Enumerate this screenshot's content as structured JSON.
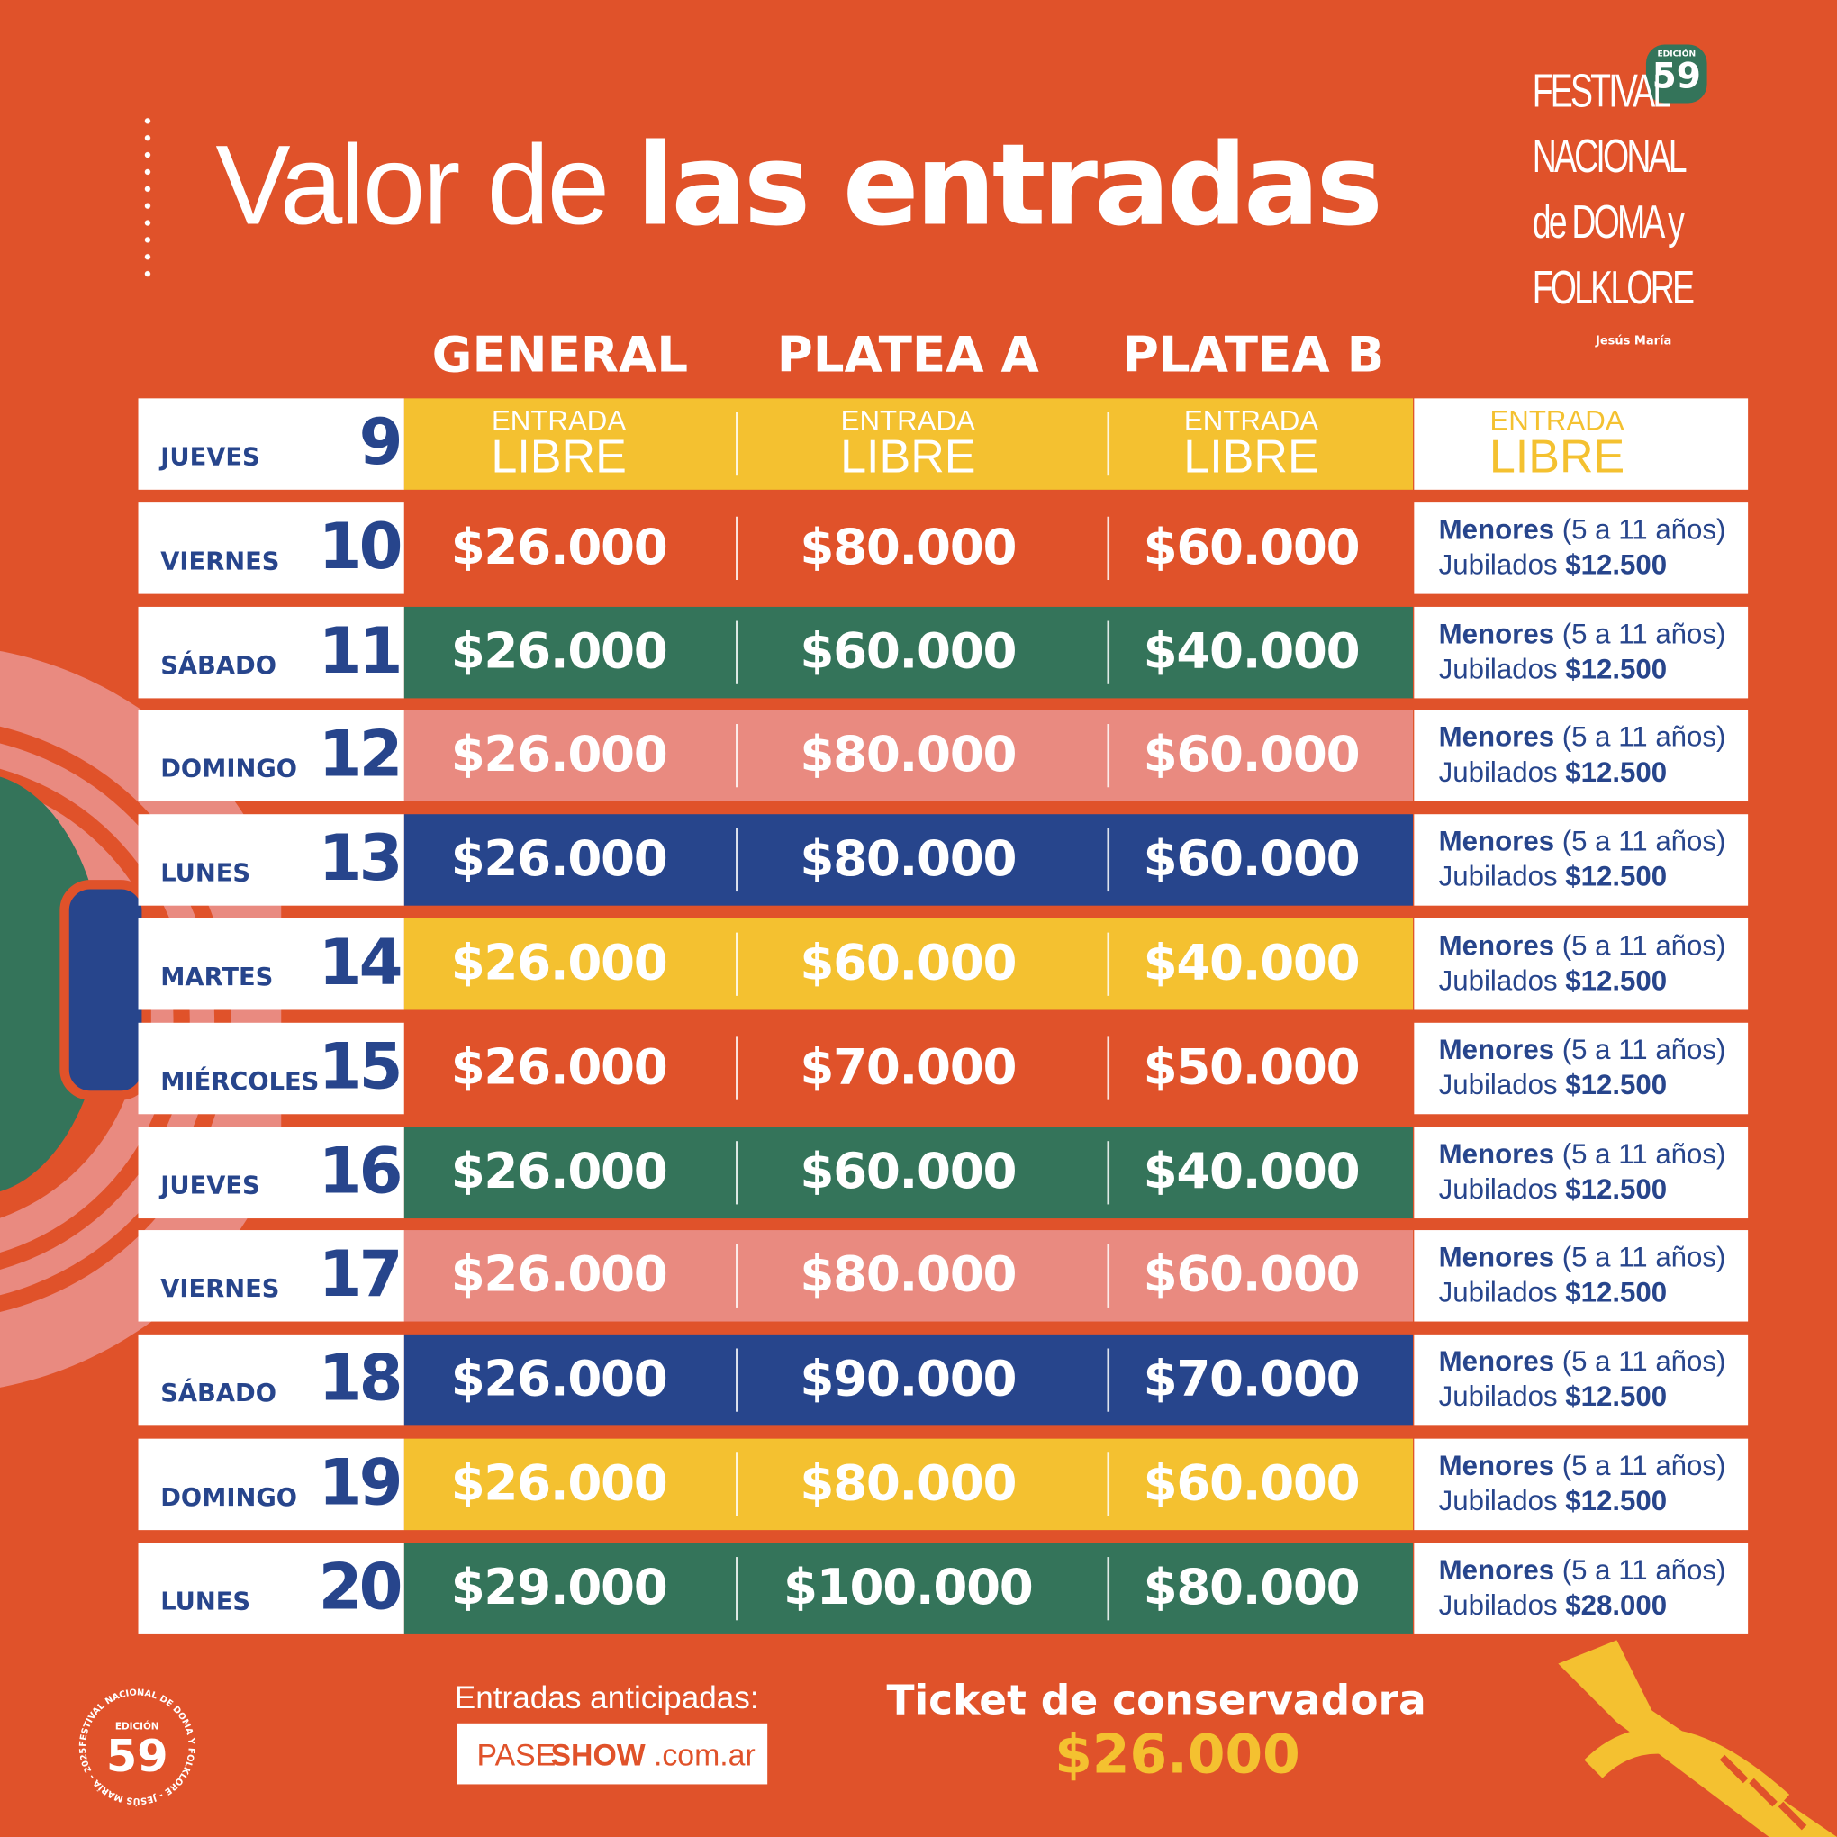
{
  "title": {
    "light": "Valor de ",
    "bold": "las entradas"
  },
  "logo": {
    "lines": [
      "FESTIVAL",
      "NACIONAL",
      "de DOMA y",
      "FOLKLORE"
    ],
    "place": "Jesús María",
    "edition_label": "EDICIÓN",
    "edition": "59"
  },
  "columns": [
    "GENERAL",
    "PLATEA A",
    "PLATEA B"
  ],
  "colors": {
    "background": "#E0522A",
    "yellow": "#F4C130",
    "green": "#34745A",
    "pink": "#E98A80",
    "blue": "#27458C",
    "orange": "#E0522A"
  },
  "free_label": {
    "line1": "ENTRADA",
    "line2": "LIBRE"
  },
  "rows": [
    {
      "day": "JUEVES",
      "num": "9",
      "color": "yellow",
      "free": true
    },
    {
      "day": "VIERNES",
      "num": "10",
      "color": "orange",
      "general": "$26.000",
      "platea_a": "$80.000",
      "platea_b": "$60.000",
      "menores": "Menores",
      "range": "(5 a 11 años)",
      "jubilados": "Jubilados",
      "jub_price": "$12.500"
    },
    {
      "day": "SÁBADO",
      "num": "11",
      "color": "green",
      "general": "$26.000",
      "platea_a": "$60.000",
      "platea_b": "$40.000",
      "menores": "Menores",
      "range": "(5 a 11 años)",
      "jubilados": "Jubilados",
      "jub_price": "$12.500"
    },
    {
      "day": "DOMINGO",
      "num": "12",
      "color": "pink",
      "general": "$26.000",
      "platea_a": "$80.000",
      "platea_b": "$60.000",
      "menores": "Menores",
      "range": "(5 a 11 años)",
      "jubilados": "Jubilados",
      "jub_price": "$12.500"
    },
    {
      "day": "LUNES",
      "num": "13",
      "color": "blue",
      "general": "$26.000",
      "platea_a": "$80.000",
      "platea_b": "$60.000",
      "menores": "Menores",
      "range": "(5 a 11 años)",
      "jubilados": "Jubilados",
      "jub_price": "$12.500"
    },
    {
      "day": "MARTES",
      "num": "14",
      "color": "yellow",
      "general": "$26.000",
      "platea_a": "$60.000",
      "platea_b": "$40.000",
      "menores": "Menores",
      "range": "(5 a 11 años)",
      "jubilados": "Jubilados",
      "jub_price": "$12.500"
    },
    {
      "day": "MIÉRCOLES",
      "num": "15",
      "color": "orange",
      "general": "$26.000",
      "platea_a": "$70.000",
      "platea_b": "$50.000",
      "menores": "Menores",
      "range": "(5 a 11 años)",
      "jubilados": "Jubilados",
      "jub_price": "$12.500"
    },
    {
      "day": "JUEVES",
      "num": "16",
      "color": "green",
      "general": "$26.000",
      "platea_a": "$60.000",
      "platea_b": "$40.000",
      "menores": "Menores",
      "range": "(5 a 11 años)",
      "jubilados": "Jubilados",
      "jub_price": "$12.500"
    },
    {
      "day": "VIERNES",
      "num": "17",
      "color": "pink",
      "general": "$26.000",
      "platea_a": "$80.000",
      "platea_b": "$60.000",
      "menores": "Menores",
      "range": "(5 a 11 años)",
      "jubilados": "Jubilados",
      "jub_price": "$12.500"
    },
    {
      "day": "SÁBADO",
      "num": "18",
      "color": "blue",
      "general": "$26.000",
      "platea_a": "$90.000",
      "platea_b": "$70.000",
      "menores": "Menores",
      "range": "(5 a 11 años)",
      "jubilados": "Jubilados",
      "jub_price": "$12.500"
    },
    {
      "day": "DOMINGO",
      "num": "19",
      "color": "yellow",
      "general": "$26.000",
      "platea_a": "$80.000",
      "platea_b": "$60.000",
      "menores": "Menores",
      "range": "(5 a 11 años)",
      "jubilados": "Jubilados",
      "jub_price": "$12.500"
    },
    {
      "day": "LUNES",
      "num": "20",
      "color": "green",
      "general": "$29.000",
      "platea_a": "$100.000",
      "platea_b": "$80.000",
      "menores": "Menores",
      "range": "(5 a 11 años)",
      "jubilados": "Jubilados",
      "jub_price": "$28.000"
    }
  ],
  "footer": {
    "advance_label": "Entradas anticipadas:",
    "paseshow": {
      "pase": "PASE",
      "show": "SHOW",
      "domain": ".com.ar"
    },
    "ticket_label": "Ticket de conservadora",
    "ticket_price": "$26.000",
    "seal": {
      "edition_label": "EDICIÓN",
      "edition": "59",
      "ring_text": "FESTIVAL NACIONAL DE DOMA Y FOLKLORE - JESÚS MARÍA - 2025 -"
    }
  }
}
